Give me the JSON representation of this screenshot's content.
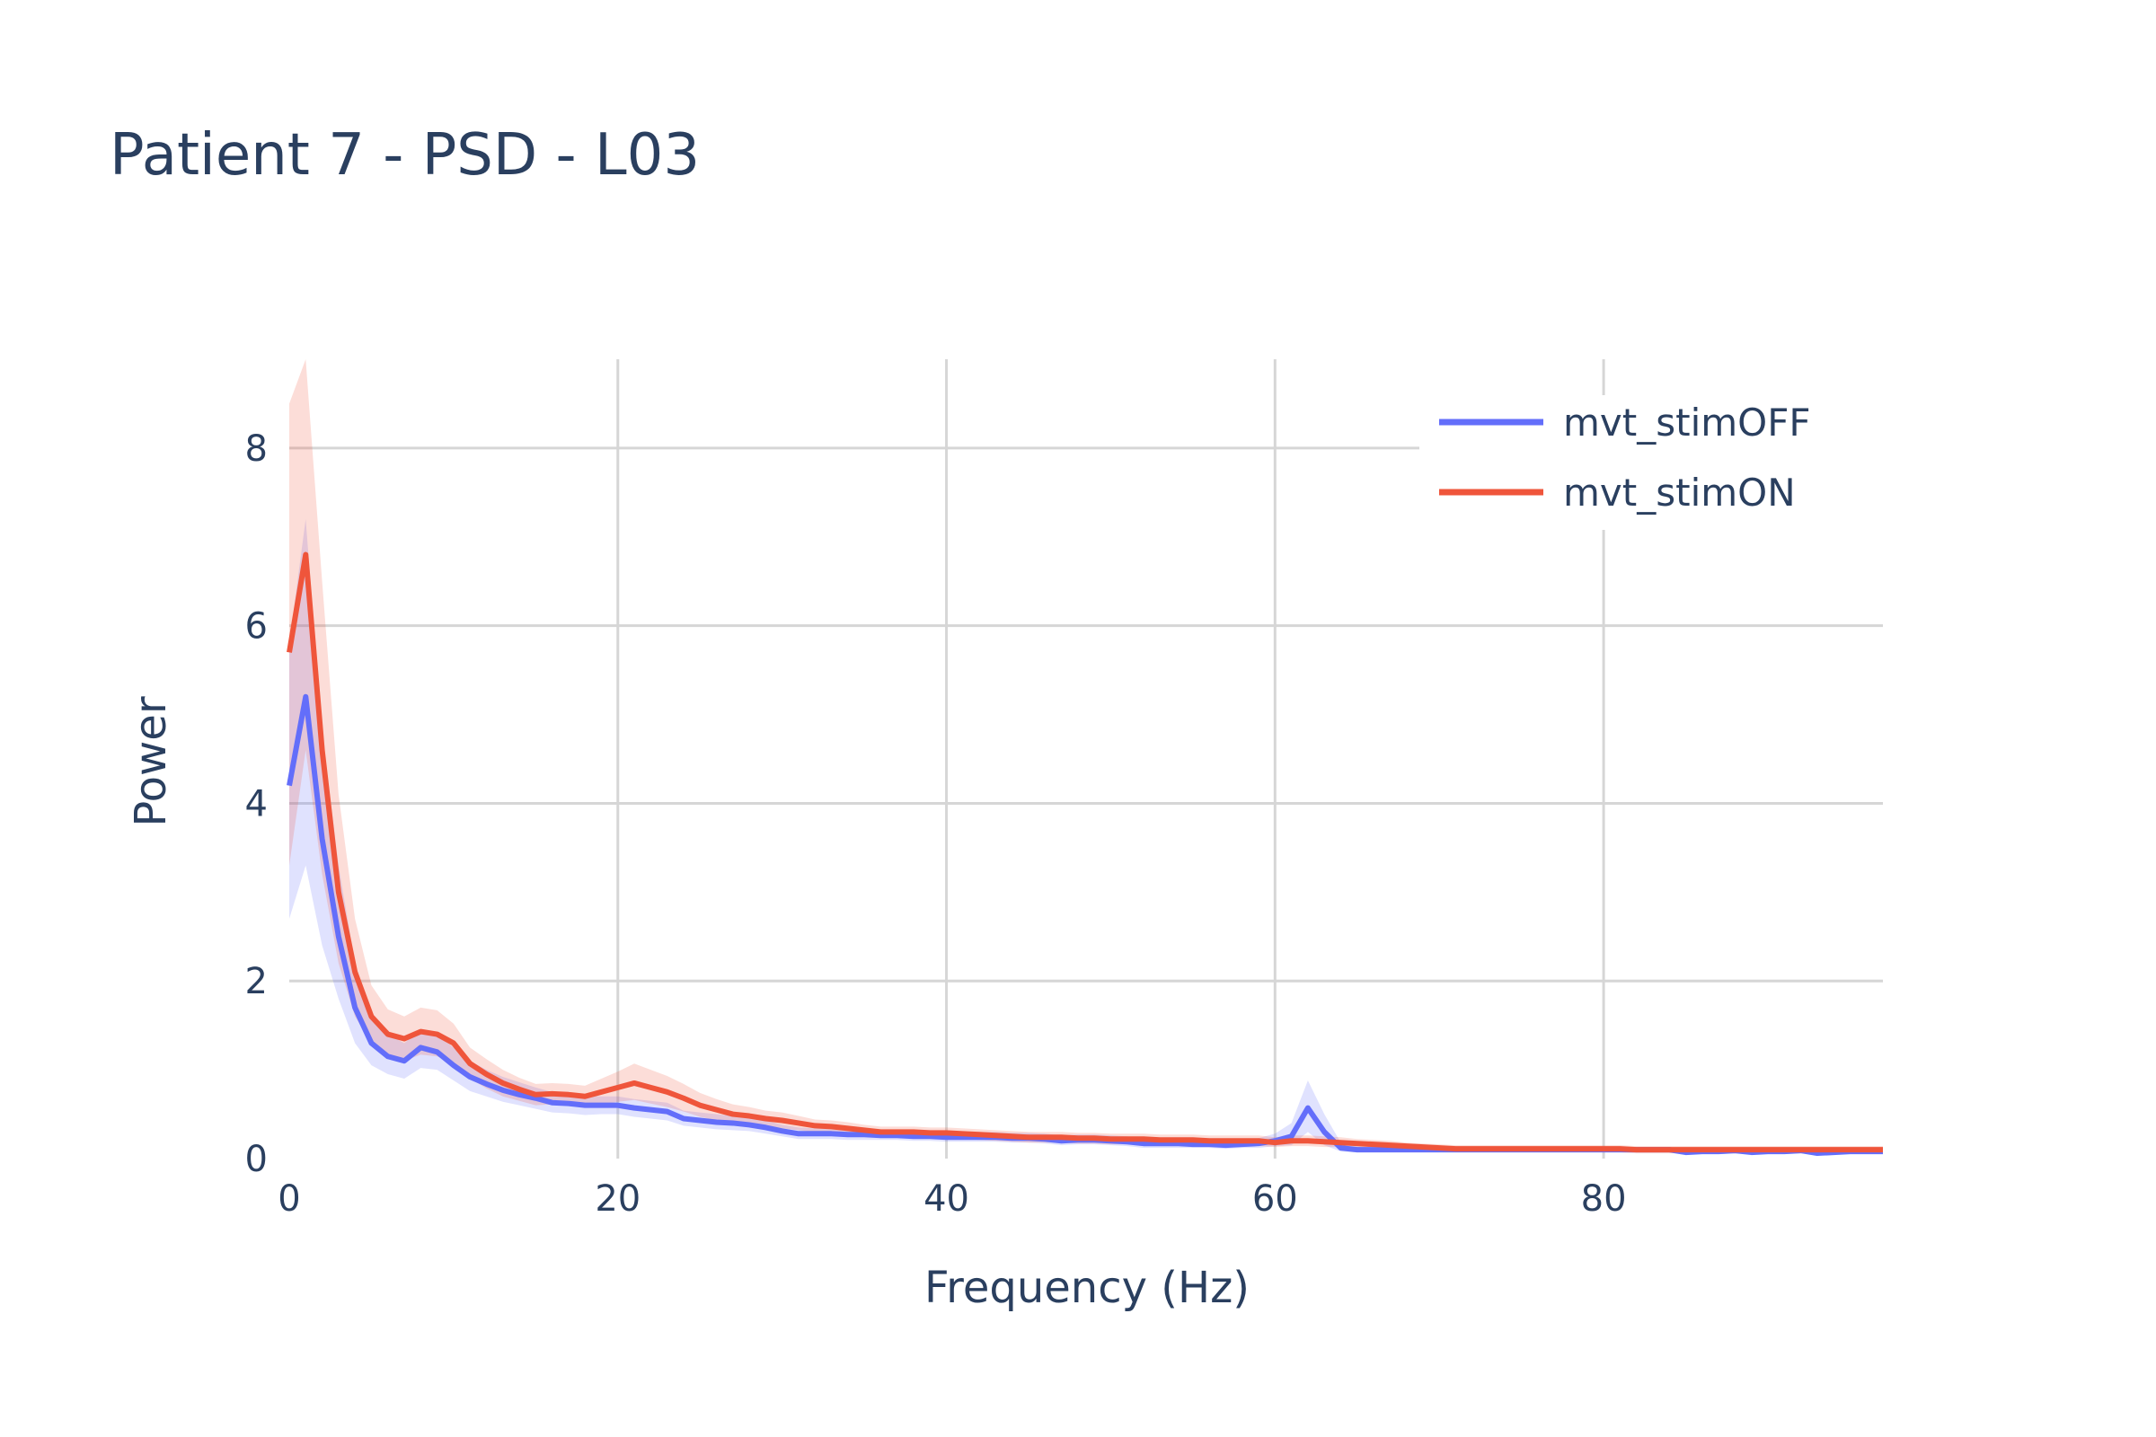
{
  "chart_data": {
    "type": "line",
    "title": "Patient 7 - PSD - L03",
    "xlabel": "Frequency (Hz)",
    "ylabel": "Power",
    "xlim": [
      0,
      97
    ],
    "ylim": [
      0,
      9
    ],
    "x_ticks": [
      0,
      20,
      40,
      60,
      80
    ],
    "y_ticks": [
      0,
      2,
      4,
      6,
      8
    ],
    "grid": true,
    "legend_position": "top-right",
    "x": [
      0,
      1,
      2,
      3,
      4,
      5,
      6,
      7,
      8,
      9,
      10,
      11,
      12,
      13,
      14,
      15,
      16,
      17,
      18,
      19,
      20,
      21,
      22,
      23,
      24,
      25,
      26,
      27,
      28,
      29,
      30,
      31,
      32,
      33,
      34,
      35,
      36,
      37,
      38,
      39,
      40,
      41,
      42,
      43,
      44,
      45,
      46,
      47,
      48,
      49,
      50,
      51,
      52,
      53,
      54,
      55,
      56,
      57,
      58,
      59,
      60,
      61,
      62,
      63,
      64,
      65,
      66,
      67,
      68,
      69,
      70,
      71,
      72,
      73,
      74,
      75,
      76,
      77,
      78,
      79,
      80,
      81,
      82,
      83,
      84,
      85,
      86,
      87,
      88,
      89,
      90,
      91,
      92,
      93,
      94,
      95,
      96,
      97
    ],
    "series": [
      {
        "name": "mvt_stimOFF",
        "color": "#636efa",
        "band_color": "rgba(99,110,250,0.2)",
        "values": [
          4.2,
          5.2,
          3.6,
          2.5,
          1.7,
          1.3,
          1.15,
          1.1,
          1.25,
          1.2,
          1.05,
          0.92,
          0.84,
          0.77,
          0.72,
          0.68,
          0.63,
          0.62,
          0.6,
          0.6,
          0.6,
          0.57,
          0.55,
          0.53,
          0.45,
          0.43,
          0.41,
          0.4,
          0.38,
          0.35,
          0.31,
          0.28,
          0.28,
          0.28,
          0.27,
          0.27,
          0.26,
          0.26,
          0.25,
          0.25,
          0.24,
          0.24,
          0.24,
          0.24,
          0.23,
          0.23,
          0.22,
          0.2,
          0.21,
          0.21,
          0.2,
          0.19,
          0.17,
          0.17,
          0.17,
          0.16,
          0.16,
          0.15,
          0.16,
          0.17,
          0.2,
          0.25,
          0.57,
          0.3,
          0.12,
          0.1,
          0.1,
          0.1,
          0.1,
          0.1,
          0.1,
          0.1,
          0.1,
          0.1,
          0.1,
          0.1,
          0.1,
          0.1,
          0.1,
          0.1,
          0.1,
          0.1,
          0.1,
          0.1,
          0.1,
          0.07,
          0.08,
          0.08,
          0.09,
          0.07,
          0.08,
          0.08,
          0.09,
          0.06,
          0.07,
          0.08,
          0.08,
          0.08
        ],
        "upper": [
          5.8,
          7.2,
          4.8,
          3.3,
          2.2,
          1.6,
          1.4,
          1.3,
          1.45,
          1.4,
          1.25,
          1.1,
          1.0,
          0.92,
          0.86,
          0.8,
          0.75,
          0.73,
          0.71,
          0.7,
          0.7,
          0.67,
          0.65,
          0.63,
          0.54,
          0.52,
          0.5,
          0.48,
          0.46,
          0.43,
          0.38,
          0.35,
          0.34,
          0.34,
          0.33,
          0.33,
          0.32,
          0.32,
          0.31,
          0.31,
          0.3,
          0.3,
          0.3,
          0.3,
          0.29,
          0.29,
          0.28,
          0.26,
          0.27,
          0.27,
          0.26,
          0.25,
          0.23,
          0.22,
          0.22,
          0.21,
          0.21,
          0.2,
          0.21,
          0.23,
          0.28,
          0.4,
          0.88,
          0.5,
          0.18,
          0.14,
          0.14,
          0.14,
          0.13,
          0.13,
          0.13,
          0.13,
          0.13,
          0.13,
          0.13,
          0.13,
          0.13,
          0.13,
          0.13,
          0.13,
          0.13,
          0.13,
          0.13,
          0.13,
          0.13,
          0.1,
          0.11,
          0.11,
          0.12,
          0.1,
          0.11,
          0.11,
          0.12,
          0.09,
          0.1,
          0.11,
          0.11,
          0.11
        ],
        "lower": [
          2.7,
          3.3,
          2.4,
          1.8,
          1.3,
          1.05,
          0.95,
          0.9,
          1.02,
          1.0,
          0.88,
          0.76,
          0.7,
          0.64,
          0.6,
          0.56,
          0.52,
          0.51,
          0.49,
          0.5,
          0.5,
          0.47,
          0.45,
          0.43,
          0.37,
          0.35,
          0.33,
          0.32,
          0.31,
          0.28,
          0.25,
          0.22,
          0.22,
          0.22,
          0.21,
          0.21,
          0.21,
          0.21,
          0.2,
          0.2,
          0.19,
          0.19,
          0.19,
          0.19,
          0.18,
          0.18,
          0.17,
          0.15,
          0.16,
          0.16,
          0.15,
          0.14,
          0.12,
          0.12,
          0.12,
          0.12,
          0.12,
          0.11,
          0.12,
          0.12,
          0.14,
          0.15,
          0.3,
          0.15,
          0.08,
          0.07,
          0.07,
          0.07,
          0.07,
          0.07,
          0.07,
          0.07,
          0.07,
          0.07,
          0.07,
          0.07,
          0.07,
          0.07,
          0.07,
          0.07,
          0.07,
          0.07,
          0.07,
          0.07,
          0.07,
          0.05,
          0.05,
          0.05,
          0.06,
          0.05,
          0.05,
          0.05,
          0.06,
          0.04,
          0.05,
          0.05,
          0.05,
          0.05
        ]
      },
      {
        "name": "mvt_stimON",
        "color": "#ef553b",
        "band_color": "rgba(239,85,59,0.2)",
        "values": [
          5.7,
          6.8,
          4.6,
          3.0,
          2.1,
          1.6,
          1.4,
          1.35,
          1.43,
          1.4,
          1.3,
          1.07,
          0.95,
          0.85,
          0.78,
          0.72,
          0.73,
          0.72,
          0.7,
          0.75,
          0.8,
          0.85,
          0.8,
          0.75,
          0.68,
          0.6,
          0.55,
          0.5,
          0.48,
          0.45,
          0.43,
          0.4,
          0.37,
          0.36,
          0.34,
          0.32,
          0.3,
          0.3,
          0.3,
          0.29,
          0.29,
          0.28,
          0.27,
          0.26,
          0.25,
          0.24,
          0.24,
          0.24,
          0.23,
          0.23,
          0.22,
          0.22,
          0.22,
          0.21,
          0.21,
          0.21,
          0.2,
          0.2,
          0.2,
          0.2,
          0.18,
          0.2,
          0.2,
          0.19,
          0.18,
          0.17,
          0.16,
          0.15,
          0.14,
          0.13,
          0.12,
          0.11,
          0.11,
          0.11,
          0.11,
          0.11,
          0.11,
          0.11,
          0.11,
          0.11,
          0.11,
          0.11,
          0.1,
          0.1,
          0.1,
          0.1,
          0.1,
          0.1,
          0.1,
          0.1,
          0.1,
          0.1,
          0.1,
          0.1,
          0.1,
          0.1,
          0.1,
          0.1
        ],
        "upper": [
          8.5,
          9.0,
          6.5,
          4.1,
          2.7,
          1.95,
          1.68,
          1.6,
          1.7,
          1.67,
          1.52,
          1.25,
          1.12,
          1.0,
          0.91,
          0.84,
          0.85,
          0.84,
          0.82,
          0.9,
          0.98,
          1.07,
          1.0,
          0.93,
          0.84,
          0.74,
          0.67,
          0.61,
          0.58,
          0.54,
          0.52,
          0.48,
          0.44,
          0.43,
          0.41,
          0.38,
          0.36,
          0.36,
          0.36,
          0.35,
          0.35,
          0.34,
          0.33,
          0.32,
          0.31,
          0.3,
          0.3,
          0.3,
          0.29,
          0.29,
          0.28,
          0.28,
          0.28,
          0.27,
          0.27,
          0.27,
          0.26,
          0.26,
          0.26,
          0.26,
          0.24,
          0.26,
          0.26,
          0.25,
          0.24,
          0.22,
          0.21,
          0.2,
          0.18,
          0.17,
          0.16,
          0.15,
          0.15,
          0.15,
          0.15,
          0.15,
          0.15,
          0.15,
          0.15,
          0.15,
          0.15,
          0.15,
          0.14,
          0.14,
          0.14,
          0.14,
          0.14,
          0.14,
          0.14,
          0.14,
          0.14,
          0.14,
          0.14,
          0.14,
          0.14,
          0.14,
          0.14,
          0.14
        ],
        "lower": [
          3.3,
          4.6,
          3.2,
          2.2,
          1.6,
          1.3,
          1.14,
          1.1,
          1.17,
          1.15,
          1.08,
          0.9,
          0.79,
          0.7,
          0.65,
          0.6,
          0.61,
          0.6,
          0.58,
          0.61,
          0.64,
          0.66,
          0.62,
          0.58,
          0.53,
          0.47,
          0.43,
          0.4,
          0.38,
          0.36,
          0.34,
          0.32,
          0.3,
          0.29,
          0.27,
          0.26,
          0.24,
          0.24,
          0.24,
          0.23,
          0.23,
          0.22,
          0.21,
          0.2,
          0.19,
          0.18,
          0.18,
          0.18,
          0.17,
          0.17,
          0.16,
          0.16,
          0.16,
          0.15,
          0.15,
          0.15,
          0.14,
          0.14,
          0.14,
          0.14,
          0.13,
          0.14,
          0.14,
          0.13,
          0.13,
          0.12,
          0.11,
          0.1,
          0.1,
          0.09,
          0.08,
          0.07,
          0.07,
          0.07,
          0.07,
          0.07,
          0.07,
          0.07,
          0.07,
          0.07,
          0.07,
          0.07,
          0.06,
          0.06,
          0.06,
          0.06,
          0.06,
          0.06,
          0.06,
          0.06,
          0.06,
          0.06,
          0.06,
          0.06,
          0.06,
          0.06,
          0.06,
          0.06
        ]
      }
    ]
  }
}
